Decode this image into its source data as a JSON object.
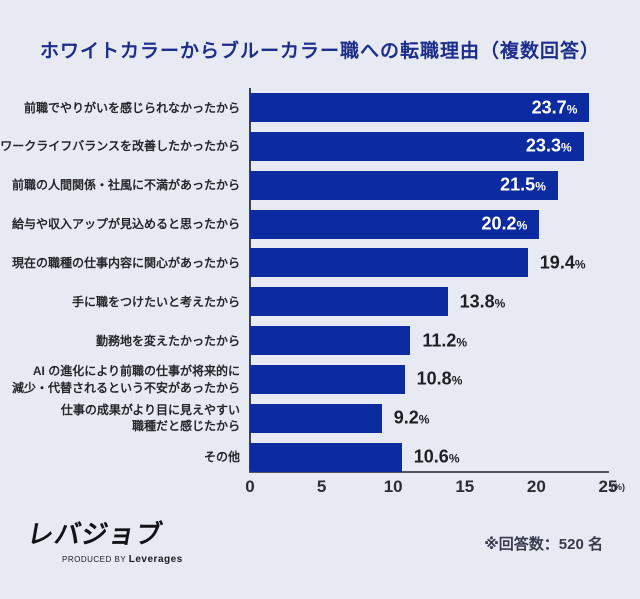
{
  "title": "ホワイトカラーからブルーカラー職への転職理由（複数回答）",
  "chart_data": {
    "type": "bar",
    "orientation": "horizontal",
    "categories": [
      [
        "前職でやりがいを感じられなかったから"
      ],
      [
        "ワークライフバランスを改善したかったから"
      ],
      [
        "前職の人間関係・社風に不満があったから"
      ],
      [
        "給与や収入アップが見込めると思ったから"
      ],
      [
        "現在の職種の仕事内容に関心があったから"
      ],
      [
        "手に職をつけたいと考えたから"
      ],
      [
        "勤務地を変えたかったから"
      ],
      [
        "AI の進化により前職の仕事が将来的に",
        "減少・代替されるという不安があったから"
      ],
      [
        "仕事の成果がより目に見えやすい",
        "職種だと感じたから"
      ],
      [
        "その他"
      ]
    ],
    "values": [
      23.7,
      23.3,
      21.5,
      20.2,
      19.4,
      13.8,
      11.2,
      10.8,
      9.2,
      10.6
    ],
    "value_suffix": "%",
    "xlim": [
      0,
      25
    ],
    "ticks": [
      0,
      5,
      10,
      15,
      20,
      25
    ],
    "unit_label": "(%)",
    "bar_color": "#0c2ba1",
    "inside_label_threshold": 20,
    "legend": "none",
    "grid": "off"
  },
  "footer": {
    "logo_text": "レバジョブ",
    "logo_subtext_prefix": "PRODUCED BY",
    "logo_subtext_brand": "Leverages",
    "note": "※回答数：520 名"
  },
  "colors": {
    "background": "#e7e9f3",
    "title": "#1d2d8a",
    "bar": "#0c2ba1",
    "category_label": "#26262b",
    "value_outside": "#1f1f23",
    "value_inside": "#ffffff",
    "axis": "#55555e"
  }
}
